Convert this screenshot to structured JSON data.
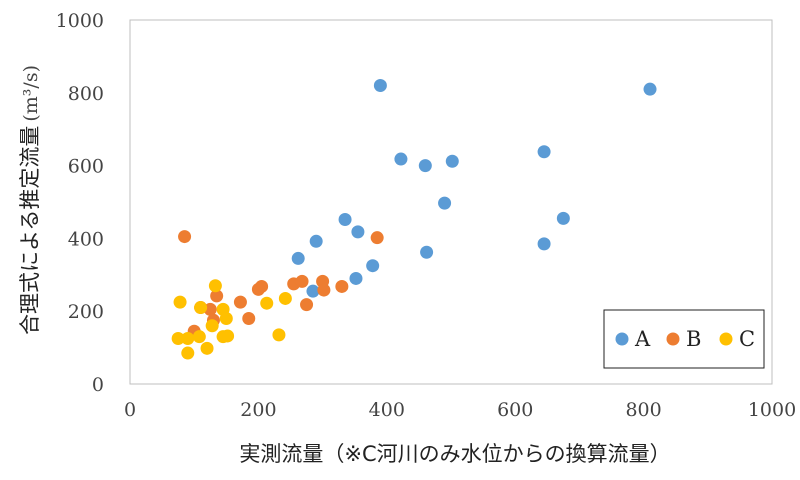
{
  "chart_data": {
    "type": "scatter",
    "xlabel": "実測流量（※C河川のみ水位からの換算流量）",
    "ylabel": "合理式による推定流量",
    "ylabel_unit": "(m³/s)",
    "xlim": [
      0,
      1000
    ],
    "ylim": [
      0,
      1000
    ],
    "xticks": [
      "0",
      "200",
      "400",
      "600",
      "800",
      "1000"
    ],
    "yticks": [
      "0",
      "200",
      "400",
      "600",
      "800",
      "1000"
    ],
    "grid": false,
    "legend_position": "bottom-right",
    "series": [
      {
        "name": "A",
        "color": "#5b9bd5",
        "points": [
          [
            390,
            820
          ],
          [
            810,
            810
          ],
          [
            645,
            638
          ],
          [
            422,
            618
          ],
          [
            502,
            612
          ],
          [
            460,
            600
          ],
          [
            490,
            497
          ],
          [
            335,
            452
          ],
          [
            675,
            455
          ],
          [
            355,
            418
          ],
          [
            290,
            392
          ],
          [
            645,
            385
          ],
          [
            462,
            362
          ],
          [
            262,
            345
          ],
          [
            378,
            325
          ],
          [
            352,
            290
          ],
          [
            285,
            255
          ]
        ]
      },
      {
        "name": "B",
        "color": "#ed7d31",
        "points": [
          [
            85,
            405
          ],
          [
            385,
            402
          ],
          [
            205,
            268
          ],
          [
            200,
            260
          ],
          [
            255,
            275
          ],
          [
            268,
            282
          ],
          [
            300,
            282
          ],
          [
            330,
            268
          ],
          [
            302,
            258
          ],
          [
            135,
            242
          ],
          [
            172,
            225
          ],
          [
            110,
            210
          ],
          [
            125,
            205
          ],
          [
            275,
            218
          ],
          [
            185,
            180
          ],
          [
            130,
            175
          ],
          [
            100,
            145
          ]
        ]
      },
      {
        "name": "C",
        "color": "#ffc000",
        "points": [
          [
            133,
            270
          ],
          [
            78,
            225
          ],
          [
            213,
            222
          ],
          [
            145,
            205
          ],
          [
            242,
            235
          ],
          [
            110,
            210
          ],
          [
            150,
            180
          ],
          [
            128,
            160
          ],
          [
            108,
            130
          ],
          [
            145,
            130
          ],
          [
            152,
            132
          ],
          [
            232,
            135
          ],
          [
            75,
            125
          ],
          [
            90,
            125
          ],
          [
            120,
            98
          ],
          [
            90,
            85
          ]
        ]
      }
    ]
  }
}
